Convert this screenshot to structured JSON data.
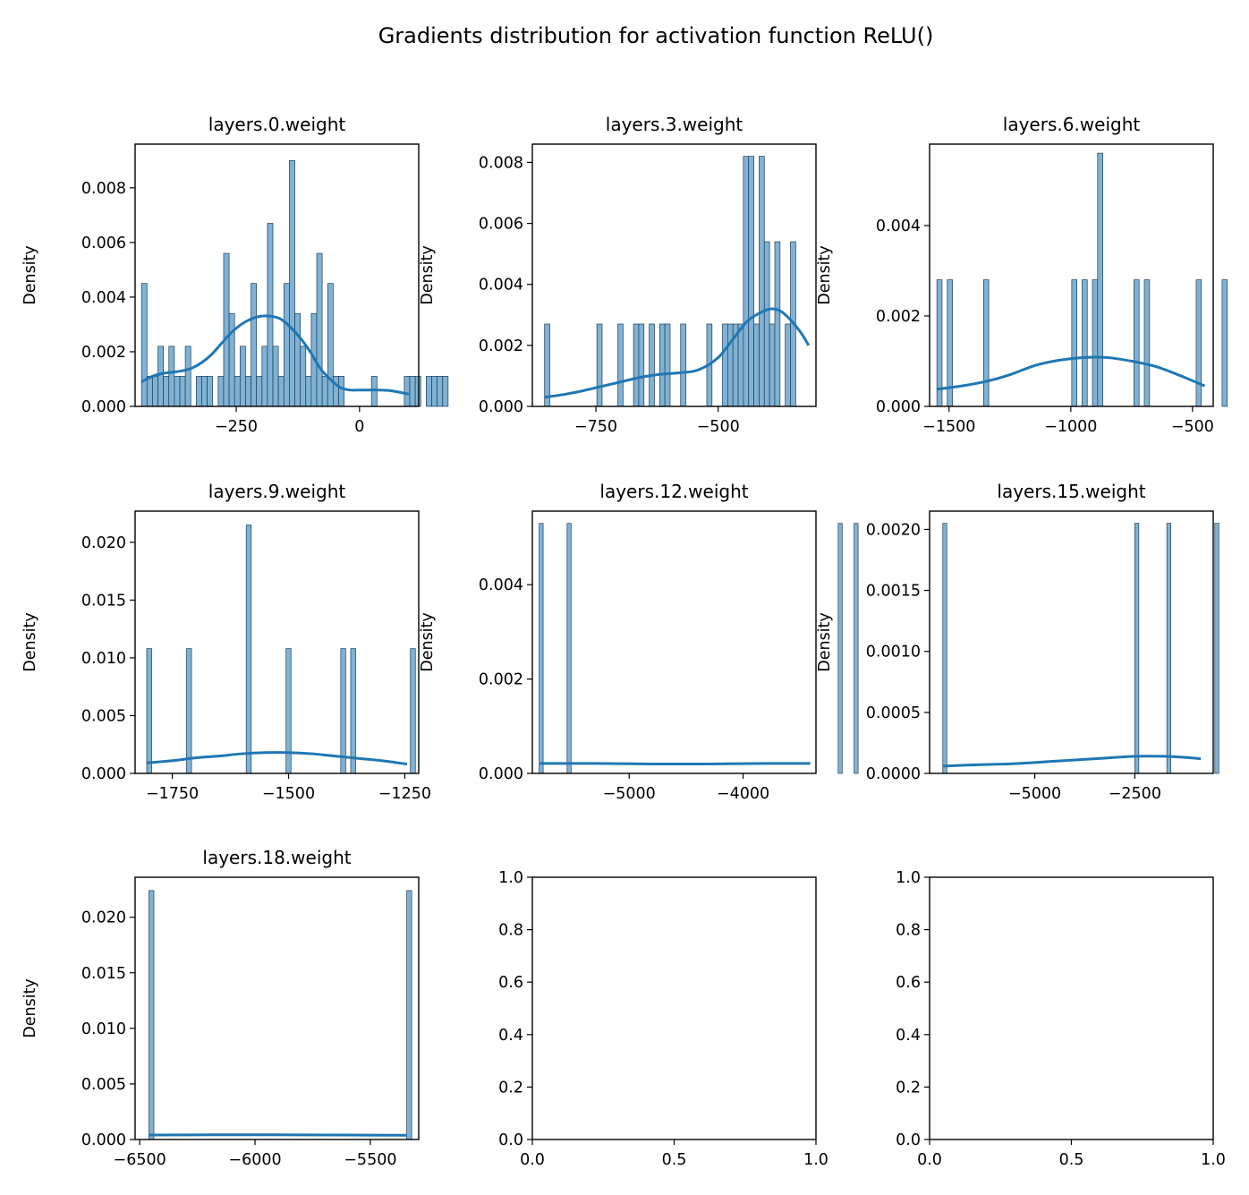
{
  "chart_data": {
    "title": "Gradients distribution for activation function ReLU()",
    "bar_color": "#7fb2d5",
    "bar_edge": "#1f3d55",
    "kde_color": "#1f77b4",
    "subplots": [
      {
        "type": "bar",
        "title": "layers.0.weight",
        "ylabel": "Density",
        "xlim": [
          -455,
          120
        ],
        "ylim": [
          0,
          0.0096
        ],
        "xticks": [
          -250,
          0
        ],
        "xticklabels": [
          "−250",
          "0"
        ],
        "yticks": [
          0,
          0.002,
          0.004,
          0.006,
          0.008
        ],
        "yticklabels": [
          "0.000",
          "0.002",
          "0.004",
          "0.006",
          "0.008"
        ],
        "bins": {
          "start": -442,
          "width": 11.1,
          "heights": [
            0.0045,
            0.0011,
            0.0011,
            0.0022,
            0.0011,
            0.0022,
            0.0011,
            0.0011,
            0.0022,
            0,
            0.0011,
            0.0011,
            0.0011,
            0,
            0.0011,
            0.0056,
            0.0034,
            0.0011,
            0.0022,
            0.0011,
            0.0045,
            0.0011,
            0.0022,
            0.0067,
            0.0022,
            0.0011,
            0.0045,
            0.009,
            0.0034,
            0.0022,
            0.0011,
            0.0034,
            0.0056,
            0.0011,
            0.0045,
            0.0011,
            0.0011,
            0,
            0,
            0,
            0,
            0,
            0.0011,
            0,
            0,
            0,
            0,
            0,
            0.0011,
            0.0011,
            0.0011,
            0,
            0.0011,
            0.0011,
            0.0011,
            0.0011
          ]
        },
        "kde": {
          "x": [
            -442,
            -420,
            -400,
            -380,
            -360,
            -340,
            -320,
            -300,
            -280,
            -260,
            -240,
            -220,
            -200,
            -180,
            -160,
            -140,
            -120,
            -100,
            -80,
            -60,
            -40,
            -20,
            0,
            20,
            40,
            60,
            80,
            100
          ],
          "y": [
            0.0009,
            0.0011,
            0.0012,
            0.00125,
            0.0013,
            0.0014,
            0.0016,
            0.0019,
            0.0023,
            0.0027,
            0.003,
            0.0032,
            0.0033,
            0.0033,
            0.0032,
            0.0029,
            0.0025,
            0.002,
            0.0014,
            0.001,
            0.0007,
            0.0006,
            0.0006,
            0.0006,
            0.0006,
            0.00058,
            0.00052,
            0.00045
          ]
        }
      },
      {
        "type": "bar",
        "title": "layers.3.weight",
        "ylabel": "Density",
        "xlim": [
          -880,
          -300
        ],
        "ylim": [
          0,
          0.0086
        ],
        "xticks": [
          -750,
          -500
        ],
        "xticklabels": [
          "−750",
          "−500"
        ],
        "yticks": [
          0,
          0.002,
          0.004,
          0.006,
          0.008
        ],
        "yticklabels": [
          "0.000",
          "0.002",
          "0.004",
          "0.006",
          "0.008"
        ],
        "bins": {
          "start": -855,
          "width": 10.7,
          "heights": [
            0.0027,
            0,
            0,
            0,
            0,
            0,
            0,
            0,
            0,
            0,
            0.0027,
            0,
            0,
            0,
            0.0027,
            0,
            0,
            0.0027,
            0.0027,
            0,
            0.0027,
            0,
            0.0027,
            0.0027,
            0,
            0,
            0.0027,
            0,
            0,
            0,
            0,
            0.0027,
            0,
            0,
            0.0027,
            0.0027,
            0.0027,
            0.0027,
            0.0082,
            0.0082,
            0.0027,
            0.0082,
            0.0054,
            0.0027,
            0.0054,
            0,
            0.0027,
            0.0054
          ]
        },
        "kde": {
          "x": [
            -855,
            -820,
            -780,
            -740,
            -700,
            -660,
            -620,
            -580,
            -540,
            -500,
            -470,
            -440,
            -410,
            -390,
            -370,
            -350,
            -330,
            -315
          ],
          "y": [
            0.0003,
            0.00038,
            0.0005,
            0.00065,
            0.0008,
            0.00095,
            0.00105,
            0.0011,
            0.0012,
            0.0016,
            0.0022,
            0.0028,
            0.0031,
            0.0032,
            0.0031,
            0.0028,
            0.0024,
            0.002
          ]
        }
      },
      {
        "type": "bar",
        "title": "layers.6.weight",
        "ylabel": "Density",
        "xlim": [
          -1580,
          -415
        ],
        "ylim": [
          0,
          0.0058
        ],
        "xticks": [
          -1500,
          -1000,
          -500
        ],
        "xticklabels": [
          "−1500",
          "−1000",
          "−500"
        ],
        "yticks": [
          0,
          0.002,
          0.004
        ],
        "yticklabels": [
          "0.000",
          "0.002",
          "0.004"
        ],
        "bins": {
          "start": -1550,
          "width": 21.3,
          "heights": [
            0.0028,
            0,
            0.0028,
            0,
            0,
            0,
            0,
            0,
            0,
            0.0028,
            0,
            0,
            0,
            0,
            0,
            0,
            0,
            0,
            0,
            0,
            0,
            0,
            0,
            0,
            0,
            0,
            0.0028,
            0,
            0.0028,
            0,
            0.0028,
            0.0056,
            0,
            0,
            0,
            0,
            0,
            0,
            0.0028,
            0,
            0.0028,
            0,
            0,
            0,
            0,
            0,
            0,
            0,
            0,
            0,
            0.0028,
            0,
            0,
            0,
            0,
            0.0028
          ]
        },
        "kde": {
          "x": [
            -1550,
            -1450,
            -1350,
            -1250,
            -1150,
            -1050,
            -950,
            -850,
            -750,
            -650,
            -550,
            -450
          ],
          "y": [
            0.00038,
            0.00045,
            0.00055,
            0.0007,
            0.0009,
            0.00102,
            0.00108,
            0.00108,
            0.001,
            0.00088,
            0.00068,
            0.00045
          ]
        }
      },
      {
        "type": "bar",
        "title": "layers.9.weight",
        "ylabel": "Density",
        "xlim": [
          -1830,
          -1220
        ],
        "ylim": [
          0,
          0.0227
        ],
        "xticks": [
          -1750,
          -1500,
          -1250
        ],
        "xticklabels": [
          "−1750",
          "−1500",
          "−1250"
        ],
        "yticks": [
          0,
          0.005,
          0.01,
          0.015,
          0.02
        ],
        "yticklabels": [
          "0.000",
          "0.005",
          "0.010",
          "0.015",
          "0.020"
        ],
        "bins": {
          "start": -1805,
          "width": 10.7,
          "heights": [
            0.0108,
            0,
            0,
            0,
            0,
            0,
            0,
            0,
            0.0108,
            0,
            0,
            0,
            0,
            0,
            0,
            0,
            0,
            0,
            0,
            0,
            0.0215,
            0,
            0,
            0,
            0,
            0,
            0,
            0,
            0.0108,
            0,
            0,
            0,
            0,
            0,
            0,
            0,
            0,
            0,
            0,
            0.0108,
            0,
            0.0108,
            0,
            0,
            0,
            0,
            0,
            0,
            0,
            0,
            0,
            0,
            0,
            0.0108
          ]
        },
        "kde": {
          "x": [
            -1805,
            -1750,
            -1700,
            -1650,
            -1600,
            -1550,
            -1500,
            -1450,
            -1400,
            -1350,
            -1300,
            -1245
          ],
          "y": [
            0.0009,
            0.0011,
            0.00135,
            0.0015,
            0.0017,
            0.0018,
            0.0018,
            0.0017,
            0.0015,
            0.0013,
            0.0011,
            0.0008
          ]
        }
      },
      {
        "type": "bar",
        "title": "layers.12.weight",
        "ylabel": "Density",
        "xlim": [
          -5850,
          -3360
        ],
        "ylim": [
          0,
          0.00556
        ],
        "xticks": [
          -5000,
          -4000
        ],
        "xticklabels": [
          "−5000",
          "−4000"
        ],
        "yticks": [
          0,
          0.002,
          0.004
        ],
        "yticklabels": [
          "0.000",
          "0.002",
          "0.004"
        ],
        "bins": {
          "start": -5790,
          "width": 35,
          "heights": [
            0.0053,
            0,
            0,
            0,
            0,
            0,
            0,
            0.0053,
            0,
            0,
            0,
            0,
            0,
            0,
            0,
            0,
            0,
            0,
            0,
            0,
            0,
            0,
            0,
            0,
            0,
            0,
            0,
            0,
            0,
            0,
            0,
            0,
            0,
            0,
            0,
            0,
            0,
            0,
            0,
            0,
            0,
            0,
            0,
            0,
            0,
            0,
            0,
            0,
            0,
            0,
            0,
            0,
            0,
            0,
            0,
            0,
            0,
            0,
            0,
            0,
            0,
            0,
            0,
            0,
            0,
            0,
            0,
            0,
            0,
            0,
            0,
            0,
            0,
            0,
            0,
            0.0053,
            0,
            0,
            0,
            0.0053
          ]
        },
        "kde": {
          "x": [
            -5790,
            -5300,
            -4800,
            -4300,
            -3800,
            -3410
          ],
          "y": [
            0.00021,
            0.00021,
            0.0002,
            0.0002,
            0.00021,
            0.00021
          ]
        }
      },
      {
        "type": "bar",
        "title": "layers.15.weight",
        "ylabel": "Density",
        "xlim": [
          -7630,
          -540
        ],
        "ylim": [
          0,
          0.00215
        ],
        "xticks": [
          -5000,
          -2500
        ],
        "xticklabels": [
          "−5000",
          "−2500"
        ],
        "yticks": [
          0,
          0.0005,
          0.001,
          0.0015,
          0.002
        ],
        "yticklabels": [
          "0.0000",
          "0.0005",
          "0.0010",
          "0.0015",
          "0.0020"
        ],
        "bins": {
          "start": -7300,
          "width": 100,
          "heights": [
            0.00205,
            0,
            0,
            0,
            0,
            0,
            0,
            0,
            0,
            0,
            0,
            0,
            0,
            0,
            0,
            0,
            0,
            0,
            0,
            0,
            0,
            0,
            0,
            0,
            0,
            0,
            0,
            0,
            0,
            0,
            0,
            0,
            0,
            0,
            0,
            0,
            0,
            0,
            0,
            0,
            0,
            0,
            0,
            0,
            0,
            0,
            0,
            0,
            0.00205,
            0,
            0,
            0,
            0,
            0,
            0,
            0,
            0.00205,
            0,
            0,
            0,
            0,
            0,
            0,
            0,
            0,
            0,
            0,
            0,
            0.00205
          ]
        },
        "kde": {
          "x": [
            -7300,
            -6500,
            -5500,
            -4500,
            -3500,
            -2500,
            -1800,
            -1200,
            -850
          ],
          "y": [
            6e-05,
            7e-05,
            8e-05,
            0.0001,
            0.00012,
            0.00014,
            0.00014,
            0.00013,
            0.00012
          ]
        }
      },
      {
        "type": "bar",
        "title": "layers.18.weight",
        "ylabel": "Density",
        "xlim": [
          -6520,
          -5290
        ],
        "ylim": [
          0,
          0.0236
        ],
        "xticks": [
          -6500,
          -6000,
          -5500
        ],
        "xticklabels": [
          "−6500",
          "−6000",
          "−5500"
        ],
        "yticks": [
          0,
          0.005,
          0.01,
          0.015,
          0.02
        ],
        "yticklabels": [
          "0.000",
          "0.005",
          "0.010",
          "0.015",
          "0.020"
        ],
        "bins": {
          "start": -6460,
          "width": 21.5,
          "heights": [
            0.0224,
            0,
            0,
            0,
            0,
            0,
            0,
            0,
            0,
            0,
            0,
            0,
            0,
            0,
            0,
            0,
            0,
            0,
            0,
            0,
            0,
            0,
            0,
            0,
            0,
            0,
            0,
            0,
            0,
            0,
            0,
            0,
            0,
            0,
            0,
            0,
            0,
            0,
            0,
            0,
            0,
            0,
            0,
            0,
            0,
            0,
            0,
            0,
            0,
            0,
            0,
            0,
            0.0224
          ]
        },
        "kde": {
          "x": [
            -6460,
            -6200,
            -5900,
            -5600,
            -5340
          ],
          "y": [
            0.0004,
            0.00042,
            0.00042,
            0.0004,
            0.00038
          ]
        }
      },
      {
        "type": "empty",
        "title": "",
        "ylabel": "",
        "xlim": [
          0,
          1
        ],
        "ylim": [
          0,
          1
        ],
        "xticks": [
          0,
          0.5,
          1
        ],
        "xticklabels": [
          "0.0",
          "0.5",
          "1.0"
        ],
        "yticks": [
          0,
          0.2,
          0.4,
          0.6,
          0.8,
          1
        ],
        "yticklabels": [
          "0.0",
          "0.2",
          "0.4",
          "0.6",
          "0.8",
          "1.0"
        ]
      },
      {
        "type": "empty",
        "title": "",
        "ylabel": "",
        "xlim": [
          0,
          1
        ],
        "ylim": [
          0,
          1
        ],
        "xticks": [
          0,
          0.5,
          1
        ],
        "xticklabels": [
          "0.0",
          "0.5",
          "1.0"
        ],
        "yticks": [
          0,
          0.2,
          0.4,
          0.6,
          0.8,
          1
        ],
        "yticklabels": [
          "0.0",
          "0.2",
          "0.4",
          "0.6",
          "0.8",
          "1.0"
        ]
      }
    ]
  }
}
